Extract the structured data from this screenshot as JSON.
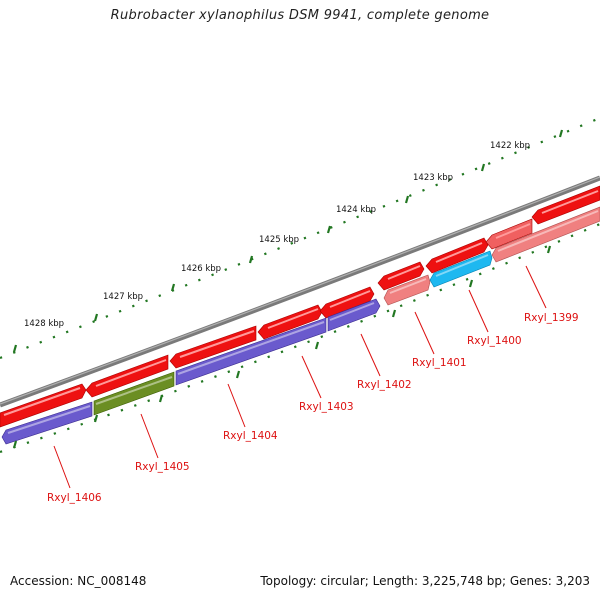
{
  "title": "Rubrobacter xylanophilus DSM 9941, complete genome",
  "footer": {
    "accession": "Accession: NC_008148",
    "summary": "Topology: circular; Length: 3,225,748 bp; Genes: 3,203"
  },
  "colors": {
    "backbone": "#7a7a7a",
    "tick": "#227722",
    "gene_label": "#dd1111",
    "forward": "#ee1111",
    "purple": "#6a5acd",
    "olive": "#6b8e23",
    "cyan": "#1eb8f0",
    "pink": "#f08080"
  },
  "kbp_labels": [
    "1422 kbp",
    "1423 kbp",
    "1424 kbp",
    "1425 kbp",
    "1426 kbp",
    "1427 kbp",
    "1428 kbp"
  ],
  "genes": [
    {
      "id": "Rxyl_1399",
      "label": "Rxyl_1399",
      "track": "reverse",
      "color": "pink"
    },
    {
      "id": "Rxyl_1400",
      "label": "Rxyl_1400",
      "track": "reverse",
      "color": "cyan"
    },
    {
      "id": "Rxyl_1401",
      "label": "Rxyl_1401",
      "track": "reverse",
      "color": "pink"
    },
    {
      "id": "Rxyl_1402",
      "label": "Rxyl_1402",
      "track": "reverse",
      "color": "purple"
    },
    {
      "id": "Rxyl_1403",
      "label": "Rxyl_1403",
      "track": "reverse",
      "color": "purple"
    },
    {
      "id": "Rxyl_1404",
      "label": "Rxyl_1404",
      "track": "reverse",
      "color": "purple"
    },
    {
      "id": "Rxyl_1405",
      "label": "Rxyl_1405",
      "track": "reverse",
      "color": "olive"
    },
    {
      "id": "Rxyl_1406",
      "label": "Rxyl_1406",
      "track": "reverse",
      "color": "purple"
    }
  ]
}
